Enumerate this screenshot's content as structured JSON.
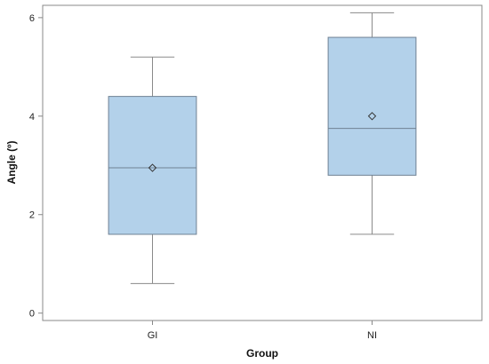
{
  "chart_data": {
    "type": "box",
    "xlabel": "Group",
    "ylabel": "Angle (º)",
    "ylim": [
      -0.15,
      6.25
    ],
    "yticks": [
      0,
      2,
      4,
      6
    ],
    "ytick_labels": [
      "0",
      "2",
      "4",
      "6"
    ],
    "grid": false,
    "legend": "none",
    "categories": [
      "GI",
      "NI"
    ],
    "boxes": [
      {
        "category": "GI",
        "min": 0.6,
        "q1": 1.6,
        "median": 2.95,
        "q3": 4.4,
        "max": 5.2,
        "mean": 2.95
      },
      {
        "category": "NI",
        "min": 1.6,
        "q1": 2.8,
        "median": 3.75,
        "q3": 5.6,
        "max": 6.1,
        "mean": 4.0
      }
    ],
    "colors": {
      "box_fill": "#b3d1ea",
      "box_stroke": "#6f8193",
      "whisker": "#8a8a8a",
      "axis": "#888888"
    }
  }
}
